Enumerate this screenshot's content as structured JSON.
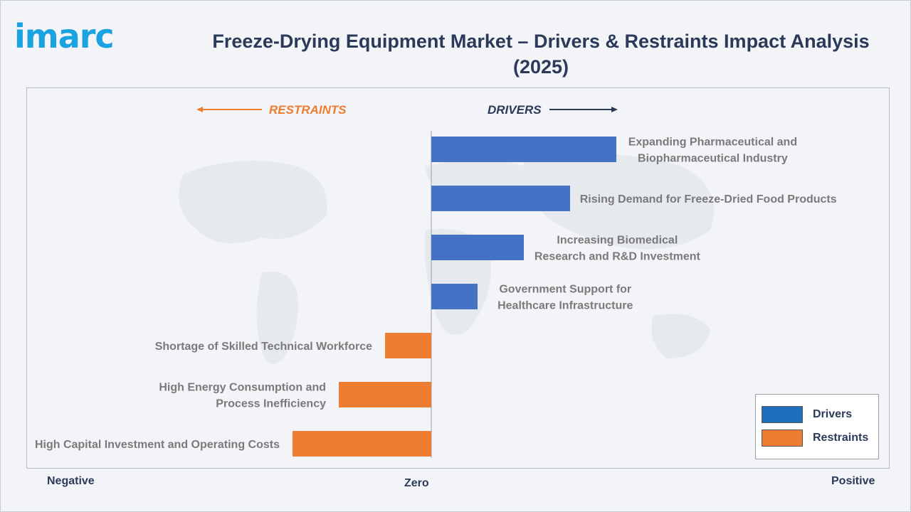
{
  "brand": {
    "logo_text": "imarc"
  },
  "header": {
    "title": "Freeze-Drying Equipment Market – Drivers & Restraints Impact Analysis (2025)"
  },
  "colors": {
    "drivers": "#4472c4",
    "restraints": "#ed7d31",
    "title": "#2b3a59",
    "label": "#7a7a7a"
  },
  "axis": {
    "negative": "Negative",
    "zero": "Zero",
    "positive": "Positive"
  },
  "chart_data": {
    "type": "bar",
    "orientation": "horizontal",
    "direction_labels": {
      "left": "RESTRAINTS",
      "right": "DRIVERS"
    },
    "categories": [
      "Expanding Pharmaceutical and Biopharmaceutical Industry",
      "Rising Demand for Freeze-Dried Food Products",
      "Increasing Biomedical Research and R&D Investment",
      "Government Support for Healthcare Infrastructure",
      "Shortage of Skilled Technical Workforce",
      "High Energy Consumption and Process Inefficiency",
      "High Capital Investment and Operating Costs"
    ],
    "series": [
      {
        "name": "Drivers",
        "values": [
          4,
          3,
          2,
          1,
          null,
          null,
          null
        ]
      },
      {
        "name": "Restraints",
        "values": [
          null,
          null,
          null,
          null,
          -1,
          -2,
          -3
        ]
      }
    ],
    "xlim": [
      -9,
      10
    ],
    "grid": false,
    "legend_position": "bottom-right"
  }
}
